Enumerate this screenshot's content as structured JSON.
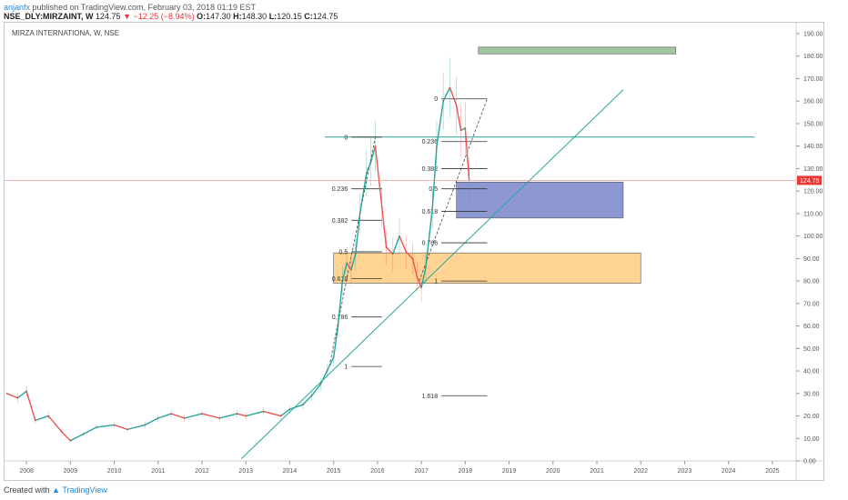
{
  "header": {
    "author": "anjanfx",
    "published": "published on TradingView.com, February 03, 2018 01:19 EST",
    "symbol": "NSE_DLY:MIRZAINT, W",
    "last": "124.75",
    "change_arrow": "▼",
    "change": "−12.25 (−8.94%)",
    "open_label": "O:",
    "open": "147.30",
    "high_label": "H:",
    "high": "148.30",
    "low_label": "L:",
    "low": "120.15",
    "close_label": "C:",
    "close": "124.75"
  },
  "footer": {
    "created_with": "Created with",
    "brand": "TradingView"
  },
  "chart_data": {
    "type": "line",
    "title": "MIRZA INTERNATIONA, W, NSE",
    "xlabel": "",
    "ylabel": "",
    "x_ticks": [
      "2008",
      "2009",
      "2010",
      "2011",
      "2012",
      "2013",
      "2014",
      "2015",
      "2016",
      "2017",
      "2018",
      "2019",
      "2020",
      "2021",
      "2022",
      "2023",
      "2024",
      "2025"
    ],
    "y_ticks": [
      "0.00",
      "10.00",
      "20.00",
      "30.00",
      "40.00",
      "50.00",
      "60.00",
      "70.00",
      "80.00",
      "90.00",
      "100.00",
      "110.00",
      "120.00",
      "130.00",
      "140.00",
      "150.00",
      "160.00",
      "170.00",
      "180.00",
      "190.00"
    ],
    "ylim": [
      0,
      190
    ],
    "xlim": [
      2007.5,
      2025.5
    ],
    "grid": false,
    "last_price": 124.75,
    "last_price_label": "124.75",
    "colors": {
      "up": "#26a69a",
      "down": "#ef5350",
      "trendline": "#26a69a",
      "price_line": "#ef9a9a"
    },
    "series": [
      {
        "values": [
          [
            2007.55,
            30
          ],
          [
            2007.8,
            28
          ],
          [
            2008.0,
            31
          ],
          [
            2008.2,
            18
          ],
          [
            2008.5,
            20
          ],
          [
            2008.8,
            13
          ],
          [
            2009.0,
            9
          ],
          [
            2009.3,
            12
          ],
          [
            2009.6,
            15
          ],
          [
            2010.0,
            16
          ],
          [
            2010.3,
            14
          ],
          [
            2010.7,
            16
          ],
          [
            2011.0,
            19
          ],
          [
            2011.3,
            21
          ],
          [
            2011.6,
            19
          ],
          [
            2012.0,
            21
          ],
          [
            2012.4,
            19
          ],
          [
            2012.8,
            21
          ],
          [
            2013.0,
            20
          ],
          [
            2013.4,
            22
          ],
          [
            2013.8,
            20
          ],
          [
            2014.0,
            23
          ],
          [
            2014.3,
            25
          ],
          [
            2014.5,
            29
          ],
          [
            2014.7,
            34
          ],
          [
            2014.85,
            40
          ],
          [
            2015.0,
            46
          ],
          [
            2015.1,
            60
          ],
          [
            2015.2,
            80
          ],
          [
            2015.3,
            88
          ],
          [
            2015.4,
            85
          ],
          [
            2015.5,
            92
          ],
          [
            2015.6,
            110
          ],
          [
            2015.75,
            128
          ],
          [
            2015.85,
            133
          ],
          [
            2015.95,
            140
          ],
          [
            2016.1,
            113
          ],
          [
            2016.2,
            95
          ],
          [
            2016.35,
            92
          ],
          [
            2016.5,
            100
          ],
          [
            2016.65,
            93
          ],
          [
            2016.8,
            90
          ],
          [
            2016.9,
            82
          ],
          [
            2017.0,
            77
          ],
          [
            2017.1,
            86
          ],
          [
            2017.25,
            112
          ],
          [
            2017.35,
            140
          ],
          [
            2017.5,
            160
          ],
          [
            2017.65,
            166
          ],
          [
            2017.8,
            158
          ],
          [
            2017.9,
            147
          ],
          [
            2018.0,
            148
          ],
          [
            2018.09,
            124.75
          ]
        ]
      }
    ],
    "zones": [
      {
        "name": "demand",
        "x": [
          2015.0,
          2022.0
        ],
        "y": [
          79,
          92.5
        ],
        "color": "#ffcc80"
      },
      {
        "name": "target",
        "x": [
          2017.8,
          2021.6
        ],
        "y": [
          108,
          124
        ],
        "color": "#7986cb"
      },
      {
        "name": "top",
        "x": [
          2018.3,
          2022.8
        ],
        "y": [
          181,
          184
        ],
        "color": "#8fbc8f"
      }
    ],
    "trendlines": [
      {
        "from": [
          2012.9,
          1
        ],
        "to": [
          2021.6,
          165
        ]
      },
      {
        "from": [
          2014.8,
          144
        ],
        "to": [
          2024.6,
          144
        ]
      }
    ],
    "fib_left": {
      "x_label": 2014.95,
      "x_line_end": 2016.1,
      "levels": [
        {
          "label": "0",
          "value": 144
        },
        {
          "label": "0.236",
          "value": 121
        },
        {
          "label": "0.382",
          "value": 107
        },
        {
          "label": "0.5",
          "value": 93
        },
        {
          "label": "0.618",
          "value": 81
        },
        {
          "label": "0.786",
          "value": 64
        },
        {
          "label": "1",
          "value": 42
        }
      ]
    },
    "fib_right": {
      "x_label": 2017.0,
      "x_line_end": 2018.5,
      "levels": [
        {
          "label": "0",
          "value": 161
        },
        {
          "label": "0.236",
          "value": 142
        },
        {
          "label": "0.382",
          "value": 130
        },
        {
          "label": "0.5",
          "value": 121
        },
        {
          "label": "0.618",
          "value": 111
        },
        {
          "label": "0.786",
          "value": 97
        },
        {
          "label": "1",
          "value": 80
        },
        {
          "label": "1.618",
          "value": 29
        }
      ]
    }
  }
}
